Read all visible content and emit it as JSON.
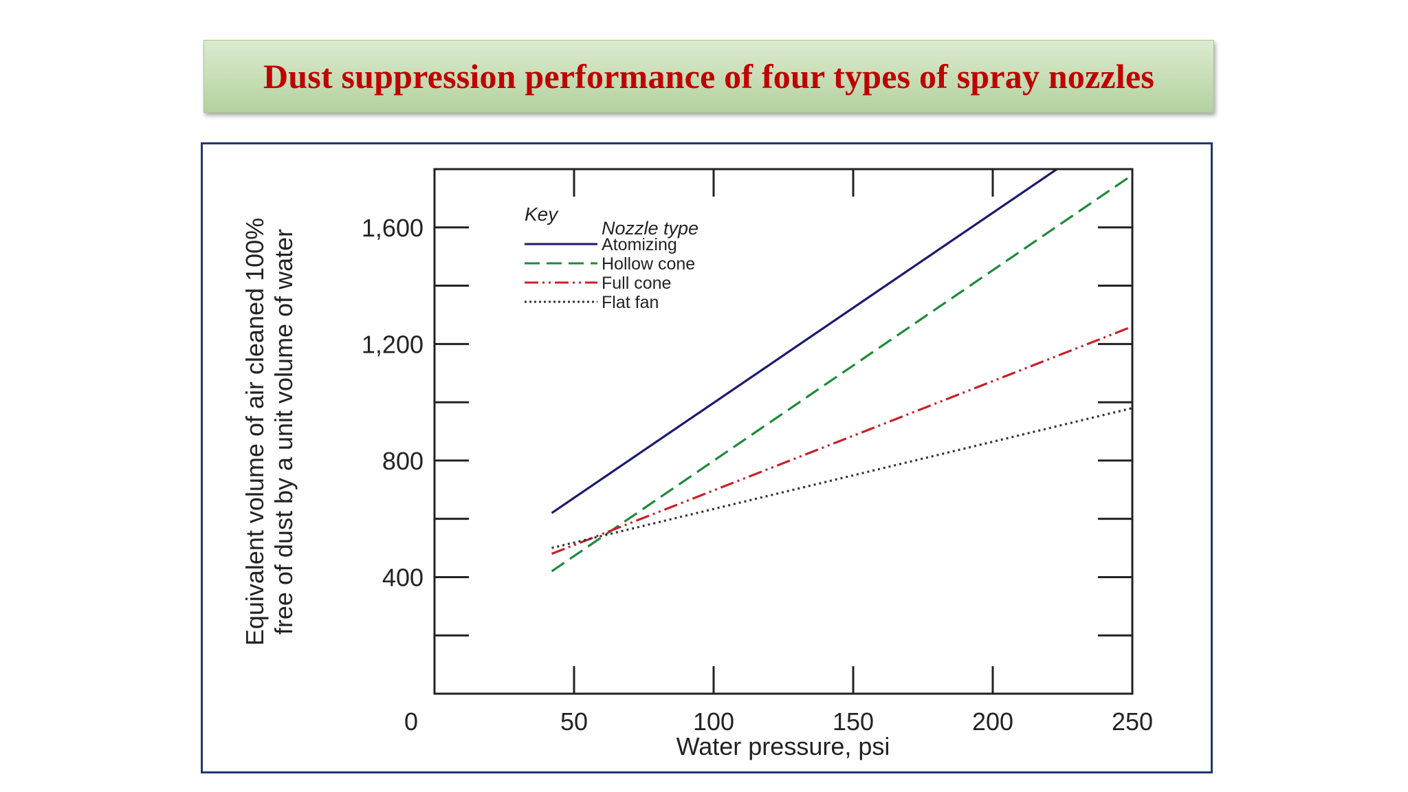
{
  "slide": {
    "title": "Dust suppression performance of four types of spray nozzles"
  },
  "chart_data": {
    "type": "line",
    "title": "",
    "xlabel": "Water pressure, psi",
    "ylabel_line1": "Equivalent volume of air cleaned 100%",
    "ylabel_line2": "free of dust by a unit volume of water",
    "xlim": [
      0,
      250
    ],
    "ylim": [
      0,
      1800
    ],
    "x_ticks": [
      0,
      50,
      100,
      150,
      200,
      250
    ],
    "x_tick_labels": [
      "0",
      "50",
      "100",
      "150",
      "200",
      "250"
    ],
    "y_ticks": [
      400,
      800,
      1200,
      1600
    ],
    "y_tick_labels": [
      "400",
      "800",
      "1,200",
      "1,600"
    ],
    "grid": false,
    "legend": {
      "placement": "top-left",
      "key_label": "Key",
      "heading": "Nozzle type"
    },
    "series": [
      {
        "name": "Atomizing",
        "color": "#1a1a6e",
        "dash": "solid",
        "x": [
          42,
          223
        ],
        "y": [
          620,
          1800
        ]
      },
      {
        "name": "Hollow cone",
        "color": "#1e8a3a",
        "dash": "dashed",
        "x": [
          42,
          250
        ],
        "y": [
          420,
          1780
        ]
      },
      {
        "name": "Full cone",
        "color": "#c8202a",
        "dash": "dashdotdot",
        "x": [
          42,
          250
        ],
        "y": [
          480,
          1260
        ]
      },
      {
        "name": "Flat fan",
        "color": "#333333",
        "dash": "dotted",
        "x": [
          42,
          250
        ],
        "y": [
          500,
          980
        ]
      }
    ]
  }
}
